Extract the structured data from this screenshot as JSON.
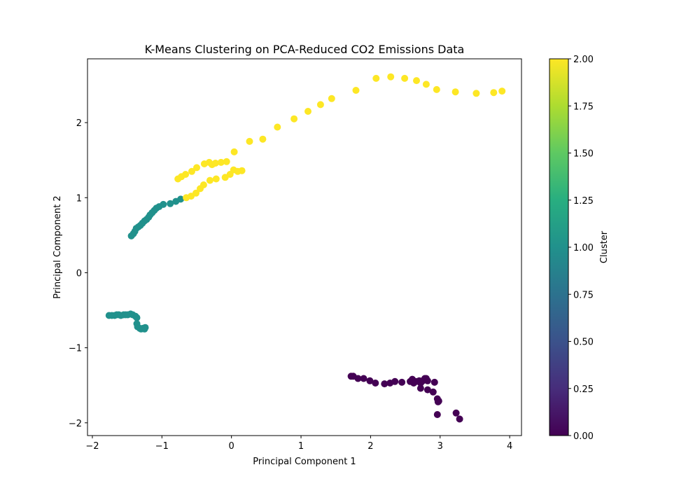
{
  "chart_data": {
    "type": "scatter",
    "title": "K-Means Clustering on PCA-Reduced CO2 Emissions Data",
    "xlabel": "Principal Component 1",
    "ylabel": "Principal Component 2",
    "xlim": [
      -2.07,
      4.17
    ],
    "ylim": [
      -2.17,
      2.85
    ],
    "x_ticks": [
      -2,
      -1,
      0,
      1,
      2,
      3,
      4
    ],
    "y_ticks": [
      -2,
      -1,
      0,
      1,
      2
    ],
    "x_tick_labels": [
      "−2",
      "−1",
      "0",
      "1",
      "2",
      "3",
      "4"
    ],
    "y_tick_labels": [
      "−2",
      "−1",
      "0",
      "1",
      "2"
    ],
    "grid": false,
    "colorbar": {
      "label": "Cluster",
      "range": [
        0,
        2
      ],
      "ticks": [
        0.0,
        0.25,
        0.5,
        0.75,
        1.0,
        1.25,
        1.5,
        1.75,
        2.0
      ],
      "tick_labels": [
        "0.00",
        "0.25",
        "0.50",
        "0.75",
        "1.00",
        "1.25",
        "1.50",
        "1.75",
        "2.00"
      ],
      "colormap": "viridis",
      "colors": {
        "0": "#440154",
        "1": "#21918c",
        "2": "#fde725"
      }
    },
    "points": [
      {
        "x": 1.72,
        "y": -1.38,
        "c": 0
      },
      {
        "x": 1.75,
        "y": -1.38,
        "c": 0
      },
      {
        "x": 1.82,
        "y": -1.41,
        "c": 0
      },
      {
        "x": 1.9,
        "y": -1.41,
        "c": 0
      },
      {
        "x": 1.99,
        "y": -1.44,
        "c": 0
      },
      {
        "x": 2.07,
        "y": -1.47,
        "c": 0
      },
      {
        "x": 2.2,
        "y": -1.48,
        "c": 0
      },
      {
        "x": 2.28,
        "y": -1.47,
        "c": 0
      },
      {
        "x": 2.35,
        "y": -1.45,
        "c": 0
      },
      {
        "x": 2.45,
        "y": -1.46,
        "c": 0
      },
      {
        "x": 2.57,
        "y": -1.45,
        "c": 0
      },
      {
        "x": 2.6,
        "y": -1.42,
        "c": 0
      },
      {
        "x": 2.62,
        "y": -1.47,
        "c": 0
      },
      {
        "x": 2.65,
        "y": -1.45,
        "c": 0
      },
      {
        "x": 2.7,
        "y": -1.44,
        "c": 0
      },
      {
        "x": 2.72,
        "y": -1.47,
        "c": 0
      },
      {
        "x": 2.75,
        "y": -1.44,
        "c": 0
      },
      {
        "x": 2.78,
        "y": -1.41,
        "c": 0
      },
      {
        "x": 2.8,
        "y": -1.41,
        "c": 0
      },
      {
        "x": 2.82,
        "y": -1.44,
        "c": 0
      },
      {
        "x": 2.92,
        "y": -1.46,
        "c": 0
      },
      {
        "x": 2.72,
        "y": -1.54,
        "c": 0
      },
      {
        "x": 2.82,
        "y": -1.56,
        "c": 0
      },
      {
        "x": 2.9,
        "y": -1.59,
        "c": 0
      },
      {
        "x": 2.96,
        "y": -1.68,
        "c": 0
      },
      {
        "x": 2.98,
        "y": -1.71,
        "c": 0
      },
      {
        "x": 2.97,
        "y": -1.72,
        "c": 0
      },
      {
        "x": 2.96,
        "y": -1.89,
        "c": 0
      },
      {
        "x": 3.23,
        "y": -1.87,
        "c": 0
      },
      {
        "x": 3.28,
        "y": -1.95,
        "c": 0
      },
      {
        "x": -1.76,
        "y": -0.57,
        "c": 1
      },
      {
        "x": -1.72,
        "y": -0.57,
        "c": 1
      },
      {
        "x": -1.68,
        "y": -0.57,
        "c": 1
      },
      {
        "x": -1.65,
        "y": -0.56,
        "c": 1
      },
      {
        "x": -1.62,
        "y": -0.56,
        "c": 1
      },
      {
        "x": -1.59,
        "y": -0.57,
        "c": 1
      },
      {
        "x": -1.55,
        "y": -0.56,
        "c": 1
      },
      {
        "x": -1.52,
        "y": -0.56,
        "c": 1
      },
      {
        "x": -1.49,
        "y": -0.56,
        "c": 1
      },
      {
        "x": -1.45,
        "y": -0.55,
        "c": 1
      },
      {
        "x": -1.42,
        "y": -0.56,
        "c": 1
      },
      {
        "x": -1.38,
        "y": -0.58,
        "c": 1
      },
      {
        "x": -1.36,
        "y": -0.6,
        "c": 1
      },
      {
        "x": -1.36,
        "y": -0.68,
        "c": 1
      },
      {
        "x": -1.35,
        "y": -0.72,
        "c": 1
      },
      {
        "x": -1.32,
        "y": -0.74,
        "c": 1
      },
      {
        "x": -1.3,
        "y": -0.75,
        "c": 1
      },
      {
        "x": -1.27,
        "y": -0.74,
        "c": 1
      },
      {
        "x": -1.25,
        "y": -0.75,
        "c": 1
      },
      {
        "x": -1.24,
        "y": -0.73,
        "c": 1
      },
      {
        "x": -1.44,
        "y": 0.49,
        "c": 1
      },
      {
        "x": -1.41,
        "y": 0.52,
        "c": 1
      },
      {
        "x": -1.39,
        "y": 0.55,
        "c": 1
      },
      {
        "x": -1.37,
        "y": 0.59,
        "c": 1
      },
      {
        "x": -1.34,
        "y": 0.61,
        "c": 1
      },
      {
        "x": -1.31,
        "y": 0.63,
        "c": 1
      },
      {
        "x": -1.28,
        "y": 0.66,
        "c": 1
      },
      {
        "x": -1.25,
        "y": 0.69,
        "c": 1
      },
      {
        "x": -1.22,
        "y": 0.71,
        "c": 1
      },
      {
        "x": -1.19,
        "y": 0.74,
        "c": 1
      },
      {
        "x": -1.17,
        "y": 0.77,
        "c": 1
      },
      {
        "x": -1.14,
        "y": 0.8,
        "c": 1
      },
      {
        "x": -1.11,
        "y": 0.83,
        "c": 1
      },
      {
        "x": -1.08,
        "y": 0.86,
        "c": 1
      },
      {
        "x": -1.04,
        "y": 0.88,
        "c": 1
      },
      {
        "x": -0.98,
        "y": 0.91,
        "c": 1
      },
      {
        "x": -0.88,
        "y": 0.92,
        "c": 1
      },
      {
        "x": -0.8,
        "y": 0.95,
        "c": 1
      },
      {
        "x": -0.73,
        "y": 0.98,
        "c": 1
      },
      {
        "x": -0.77,
        "y": 1.25,
        "c": 2
      },
      {
        "x": -0.72,
        "y": 1.28,
        "c": 2
      },
      {
        "x": -0.66,
        "y": 1.31,
        "c": 2
      },
      {
        "x": -0.57,
        "y": 1.35,
        "c": 2
      },
      {
        "x": -0.5,
        "y": 1.4,
        "c": 2
      },
      {
        "x": -0.39,
        "y": 1.45,
        "c": 2
      },
      {
        "x": -0.32,
        "y": 1.47,
        "c": 2
      },
      {
        "x": -0.28,
        "y": 1.44,
        "c": 2
      },
      {
        "x": -0.23,
        "y": 1.46,
        "c": 2
      },
      {
        "x": -0.15,
        "y": 1.47,
        "c": 2
      },
      {
        "x": -0.07,
        "y": 1.48,
        "c": 2
      },
      {
        "x": 0.04,
        "y": 1.61,
        "c": 2
      },
      {
        "x": -0.65,
        "y": 1.0,
        "c": 2
      },
      {
        "x": -0.58,
        "y": 1.02,
        "c": 2
      },
      {
        "x": -0.51,
        "y": 1.06,
        "c": 2
      },
      {
        "x": -0.45,
        "y": 1.12,
        "c": 2
      },
      {
        "x": -0.4,
        "y": 1.17,
        "c": 2
      },
      {
        "x": -0.31,
        "y": 1.23,
        "c": 2
      },
      {
        "x": -0.22,
        "y": 1.25,
        "c": 2
      },
      {
        "x": -0.09,
        "y": 1.27,
        "c": 2
      },
      {
        "x": -0.02,
        "y": 1.31,
        "c": 2
      },
      {
        "x": 0.03,
        "y": 1.37,
        "c": 2
      },
      {
        "x": 0.09,
        "y": 1.35,
        "c": 2
      },
      {
        "x": 0.15,
        "y": 1.36,
        "c": 2
      },
      {
        "x": 0.26,
        "y": 1.75,
        "c": 2
      },
      {
        "x": 0.45,
        "y": 1.78,
        "c": 2
      },
      {
        "x": 0.66,
        "y": 1.94,
        "c": 2
      },
      {
        "x": 0.9,
        "y": 2.05,
        "c": 2
      },
      {
        "x": 1.1,
        "y": 2.15,
        "c": 2
      },
      {
        "x": 1.28,
        "y": 2.24,
        "c": 2
      },
      {
        "x": 1.44,
        "y": 2.32,
        "c": 2
      },
      {
        "x": 1.79,
        "y": 2.43,
        "c": 2
      },
      {
        "x": 2.08,
        "y": 2.59,
        "c": 2
      },
      {
        "x": 2.29,
        "y": 2.61,
        "c": 2
      },
      {
        "x": 2.49,
        "y": 2.59,
        "c": 2
      },
      {
        "x": 2.66,
        "y": 2.56,
        "c": 2
      },
      {
        "x": 2.8,
        "y": 2.51,
        "c": 2
      },
      {
        "x": 2.95,
        "y": 2.44,
        "c": 2
      },
      {
        "x": 3.22,
        "y": 2.41,
        "c": 2
      },
      {
        "x": 3.52,
        "y": 2.39,
        "c": 2
      },
      {
        "x": 3.77,
        "y": 2.4,
        "c": 2
      },
      {
        "x": 3.89,
        "y": 2.42,
        "c": 2
      }
    ]
  }
}
